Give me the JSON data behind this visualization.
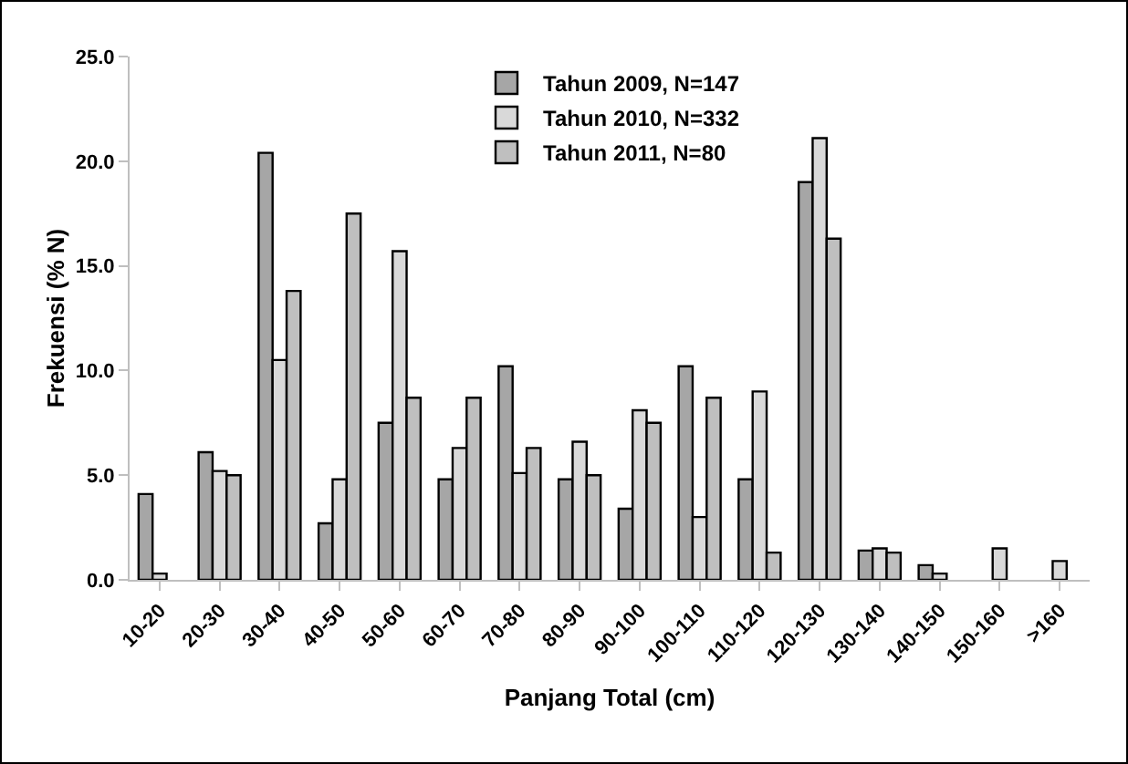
{
  "chart_data": {
    "type": "bar",
    "xlabel": "Panjang Total (cm)",
    "ylabel": "Frekuensi (% N)",
    "categories": [
      "10-20",
      "20-30",
      "30-40",
      "40-50",
      "50-60",
      "60-70",
      "70-80",
      "80-90",
      "90-100",
      "100-110",
      "110-120",
      "120-130",
      "130-140",
      "140-150",
      "150-160",
      ">160"
    ],
    "series": [
      {
        "name": "Tahun 2009, N=147",
        "color": "#a6a6a6",
        "values": [
          4.1,
          6.1,
          20.4,
          2.7,
          7.5,
          4.8,
          10.2,
          4.8,
          3.4,
          10.2,
          4.8,
          19.0,
          1.4,
          0.7,
          null,
          null
        ]
      },
      {
        "name": "Tahun 2010, N=332",
        "color": "#d9d9d9",
        "values": [
          0.3,
          5.2,
          10.5,
          4.8,
          15.7,
          6.3,
          5.1,
          6.6,
          8.1,
          3.0,
          9.0,
          21.1,
          1.5,
          0.3,
          1.5,
          0.9
        ]
      },
      {
        "name": "Tahun 2011, N=80",
        "color": "#bfbfbf",
        "values": [
          null,
          5.0,
          13.8,
          17.5,
          8.7,
          8.7,
          6.3,
          5.0,
          7.5,
          8.7,
          1.3,
          16.3,
          1.3,
          null,
          null,
          null
        ]
      }
    ],
    "ylim": [
      0,
      25
    ],
    "yticks": [
      {
        "value": 0,
        "label": "0.0"
      },
      {
        "value": 5,
        "label": "5.0"
      },
      {
        "value": 10,
        "label": "10.0"
      },
      {
        "value": 15,
        "label": "15.0"
      },
      {
        "value": 20,
        "label": "20.0"
      },
      {
        "value": 25,
        "label": "25.0"
      }
    ],
    "grid": false,
    "legend": "top"
  }
}
